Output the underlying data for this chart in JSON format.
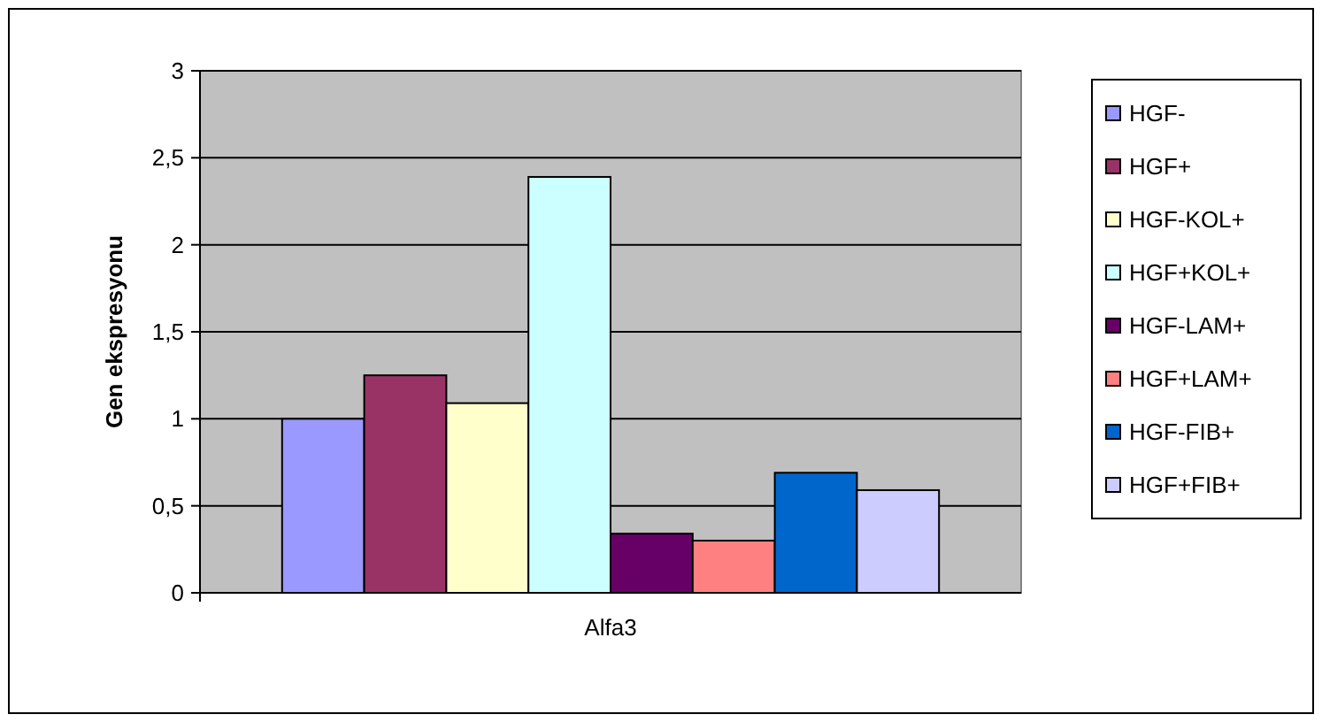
{
  "chart_data": {
    "type": "bar",
    "ylabel": "Gen ekspresyonu",
    "categories": [
      "Alfa3"
    ],
    "series": [
      {
        "name": "HGF-",
        "color": "#9999ff",
        "values": [
          1
        ]
      },
      {
        "name": "HGF+",
        "color": "#993366",
        "values": [
          1.25
        ]
      },
      {
        "name": "HGF-KOL+",
        "color": "#ffffcc",
        "values": [
          1.09
        ]
      },
      {
        "name": "HGF+KOL+",
        "color": "#ccffff",
        "values": [
          2.39
        ]
      },
      {
        "name": "HGF-LAM+",
        "color": "#660066",
        "values": [
          0.34
        ]
      },
      {
        "name": "HGF+LAM+",
        "color": "#ff8080",
        "values": [
          0.3
        ]
      },
      {
        "name": "HGF-FIB+",
        "color": "#0066cc",
        "values": [
          0.69
        ]
      },
      {
        "name": "HGF+FIB+",
        "color": "#ccccff",
        "values": [
          0.59
        ]
      }
    ],
    "ylim": [
      0,
      3
    ],
    "yticks": [
      0,
      {
        "value": 0.5,
        "label": "0,5"
      },
      1,
      {
        "value": 1.5,
        "label": "1,5"
      },
      2,
      {
        "value": 2.5,
        "label": "2,5"
      },
      3
    ],
    "grid": "y",
    "legend": "right"
  }
}
